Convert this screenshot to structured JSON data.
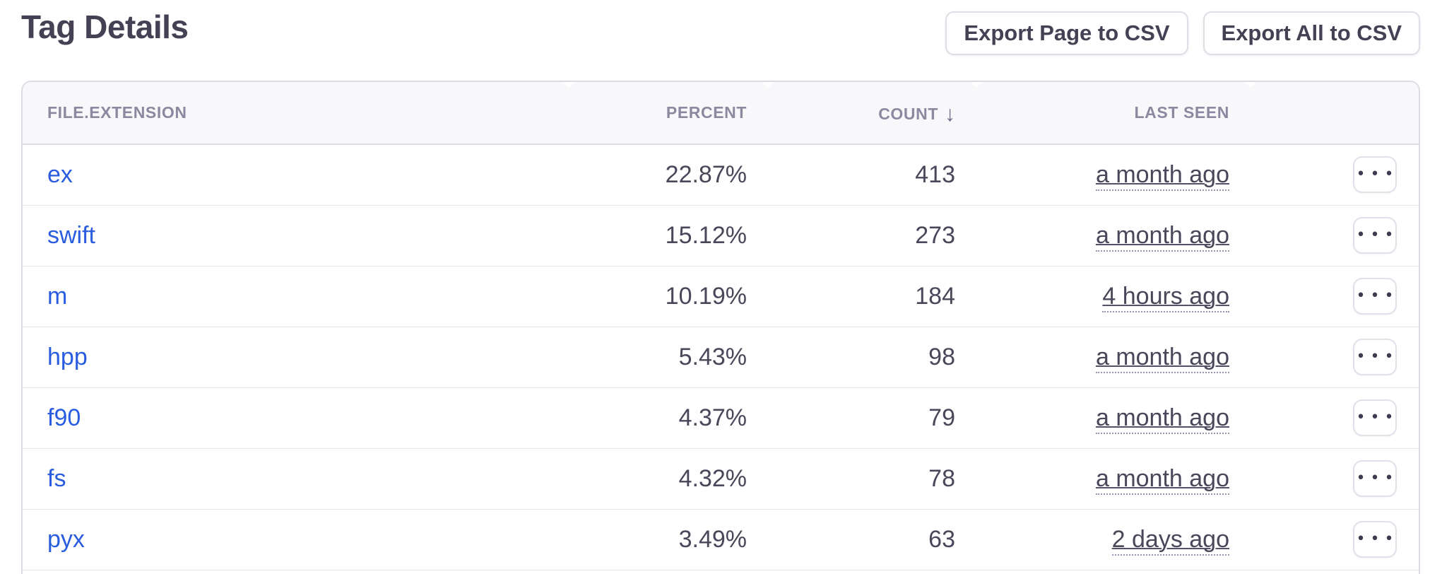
{
  "page": {
    "title": "Tag Details"
  },
  "toolbar": {
    "export_page_label": "Export Page to CSV",
    "export_all_label": "Export All to CSV"
  },
  "table": {
    "columns": [
      {
        "label": "FILE.EXTENSION",
        "align": "left"
      },
      {
        "label": "PERCENT",
        "align": "right"
      },
      {
        "label": "COUNT",
        "align": "right",
        "sort": "desc",
        "sort_icon": "↓"
      },
      {
        "label": "LAST SEEN",
        "align": "right"
      },
      {
        "label": "",
        "align": "right"
      }
    ],
    "rows": [
      {
        "extension": "ex",
        "percent": "22.87%",
        "count": "413",
        "last_seen": "a month ago"
      },
      {
        "extension": "swift",
        "percent": "15.12%",
        "count": "273",
        "last_seen": "a month ago"
      },
      {
        "extension": "m",
        "percent": "10.19%",
        "count": "184",
        "last_seen": "4 hours ago"
      },
      {
        "extension": "hpp",
        "percent": "5.43%",
        "count": "98",
        "last_seen": "a month ago"
      },
      {
        "extension": "f90",
        "percent": "4.37%",
        "count": "79",
        "last_seen": "a month ago"
      },
      {
        "extension": "fs",
        "percent": "4.32%",
        "count": "78",
        "last_seen": "a month ago"
      },
      {
        "extension": "pyx",
        "percent": "3.49%",
        "count": "63",
        "last_seen": "2 days ago"
      }
    ],
    "row_action_glyph": "•••"
  },
  "colors": {
    "link_blue": "#2a5ce0",
    "text_dark": "#4b4659",
    "header_muted": "#8d88a0",
    "border": "#dcdbe3",
    "header_bg": "#f8f8fa"
  }
}
